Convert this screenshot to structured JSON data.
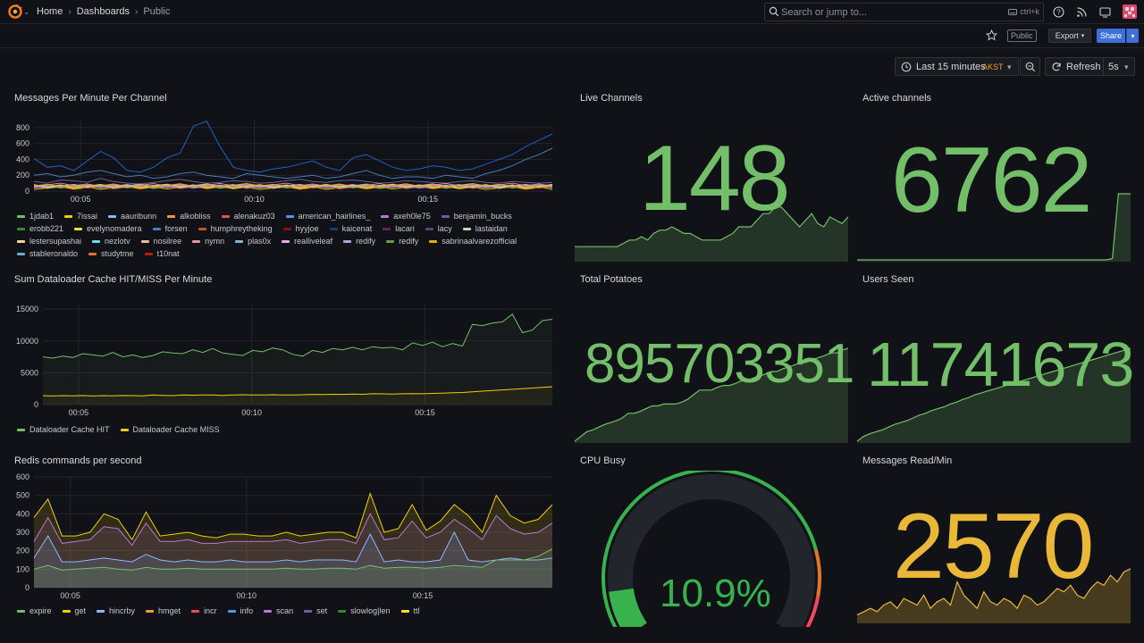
{
  "breadcrumb": {
    "home": "Home",
    "dashboards": "Dashboards",
    "current": "Public"
  },
  "search": {
    "placeholder": "Search or jump to...",
    "shortcut": "ctrl+k"
  },
  "toolbar": {
    "public_tag": "Public",
    "export_label": "Export",
    "share_label": "Share"
  },
  "timepicker": {
    "range": "Last 15 minutes",
    "timezone": "AKST"
  },
  "refresh": {
    "label": "Refresh",
    "interval": "5s"
  },
  "colors": {
    "green": "#73bf69",
    "yellow": "#f2cc0c",
    "blue": "#5794f2",
    "orange": "#ff9830",
    "red": "#f2495c",
    "purple": "#b877d9",
    "dark_blue": "#1f60c4"
  },
  "panels": {
    "messages_per_minute": {
      "title": "Messages Per Minute Per Channel",
      "legend": [
        {
          "name": "1jdab1",
          "color": "#73bf69"
        },
        {
          "name": "7issai",
          "color": "#f2cc0c"
        },
        {
          "name": "aauribunn",
          "color": "#8ab8ff"
        },
        {
          "name": "alkobliss",
          "color": "#ff9830"
        },
        {
          "name": "alenakuz03",
          "color": "#f2495c"
        },
        {
          "name": "american_hairlines_",
          "color": "#5794f2"
        },
        {
          "name": "axeh0le75",
          "color": "#b877d9"
        },
        {
          "name": "benjamin_bucks",
          "color": "#705da0"
        },
        {
          "name": "erobb221",
          "color": "#37872d"
        },
        {
          "name": "evelynomadera",
          "color": "#fade2a"
        },
        {
          "name": "forsen",
          "color": "#447ebc"
        },
        {
          "name": "humphreytheking",
          "color": "#c15c17"
        },
        {
          "name": "hyyjoe",
          "color": "#890f02"
        },
        {
          "name": "kaicenat",
          "color": "#0a437c"
        },
        {
          "name": "lacari",
          "color": "#6d1f62"
        },
        {
          "name": "lacy",
          "color": "#584477"
        },
        {
          "name": "lastaidan",
          "color": "#b7dbab"
        },
        {
          "name": "lestersupashai",
          "color": "#f4d598"
        },
        {
          "name": "nezlotv",
          "color": "#70dbed"
        },
        {
          "name": "nosilree",
          "color": "#f9ba8f"
        },
        {
          "name": "nymn",
          "color": "#f29191"
        },
        {
          "name": "plas0x",
          "color": "#82b5d8"
        },
        {
          "name": "realliveleaf",
          "color": "#e5a8e2"
        },
        {
          "name": "redify",
          "color": "#aea2e0"
        },
        {
          "name": "redify",
          "color": "#629e51"
        },
        {
          "name": "sabrinaalvarezofficial",
          "color": "#e5ac0e"
        },
        {
          "name": "stableronaldo",
          "color": "#64b0c8"
        },
        {
          "name": "studytme",
          "color": "#e0752d"
        },
        {
          "name": "t10nat",
          "color": "#bf1b00"
        }
      ]
    },
    "live_channels": {
      "title": "Live Channels",
      "value": "148"
    },
    "active_channels": {
      "title": "Active channels",
      "value": "6762"
    },
    "cache_hit_miss": {
      "title": "Sum Dataloader Cache HIT/MISS Per Minute",
      "legend": [
        {
          "name": "Dataloader Cache HIT",
          "color": "#73bf69"
        },
        {
          "name": "Dataloader Cache MISS",
          "color": "#f2cc0c"
        }
      ]
    },
    "total_potatoes": {
      "title": "Total Potatoes",
      "value": "895703351"
    },
    "users_seen": {
      "title": "Users Seen",
      "value": "11741673"
    },
    "redis_commands": {
      "title": "Redis commands per second",
      "legend": [
        {
          "name": "expire",
          "color": "#73bf69"
        },
        {
          "name": "get",
          "color": "#f2cc0c"
        },
        {
          "name": "hincrby",
          "color": "#8ab8ff"
        },
        {
          "name": "hmget",
          "color": "#ff9830"
        },
        {
          "name": "incr",
          "color": "#f2495c"
        },
        {
          "name": "info",
          "color": "#5794f2"
        },
        {
          "name": "scan",
          "color": "#b877d9"
        },
        {
          "name": "set",
          "color": "#705da0"
        },
        {
          "name": "slowlog|len",
          "color": "#37872d"
        },
        {
          "name": "ttl",
          "color": "#fade2a"
        }
      ]
    },
    "cpu_busy": {
      "title": "CPU Busy",
      "value": "10.9%",
      "percent": 10.9
    },
    "messages_read": {
      "title": "Messages Read/Min",
      "value": "2570"
    }
  },
  "chart_data": [
    {
      "type": "line",
      "title": "Messages Per Minute Per Channel",
      "x_ticks": [
        "00:05",
        "00:10",
        "00:15"
      ],
      "y_ticks": [
        0,
        200,
        400,
        600,
        800
      ],
      "ylim": [
        0,
        900
      ],
      "series": [
        {
          "name": "forsen",
          "values": [
            410,
            300,
            320,
            260,
            380,
            500,
            420,
            260,
            240,
            300,
            420,
            480,
            820,
            880,
            560,
            300,
            260,
            240,
            280,
            300,
            340,
            380,
            300,
            260,
            420,
            460,
            380,
            300,
            260,
            280,
            320,
            300,
            260,
            280,
            340,
            400,
            460,
            560,
            640,
            720
          ]
        },
        {
          "name": "kaicenat",
          "values": [
            200,
            220,
            180,
            200,
            240,
            260,
            220,
            180,
            200,
            160,
            180,
            220,
            240,
            200,
            180,
            160,
            220,
            200,
            180,
            160,
            180,
            200,
            160,
            180,
            220,
            260,
            200,
            160,
            180,
            180,
            160,
            200,
            180,
            160,
            220,
            260,
            320,
            400,
            460,
            540
          ]
        },
        {
          "name": "lacy",
          "values": [
            120,
            100,
            140,
            130,
            110,
            160,
            120,
            100,
            90,
            110,
            130,
            150,
            120,
            100,
            110,
            130,
            120,
            100,
            110,
            130,
            150,
            120,
            110,
            130,
            140,
            120,
            100,
            110,
            130,
            120,
            110,
            100,
            120,
            130,
            110,
            100,
            120,
            110,
            100,
            110
          ]
        }
      ]
    },
    {
      "type": "area",
      "title": "Live Channels",
      "values": [
        20,
        20,
        20,
        20,
        20,
        20,
        20,
        20,
        25,
        30,
        30,
        35,
        30,
        40,
        45,
        45,
        50,
        45,
        40,
        40,
        35,
        30,
        30,
        30,
        30,
        35,
        40,
        50,
        50,
        50,
        60,
        70,
        70,
        80,
        80,
        70,
        60,
        50,
        60,
        70,
        55,
        50,
        65,
        60,
        55,
        65
      ]
    },
    {
      "type": "area",
      "title": "Active channels",
      "values": [
        0,
        0,
        0,
        0,
        0,
        0,
        0,
        0,
        0,
        0,
        0,
        0,
        0,
        0,
        0,
        0,
        0,
        0,
        0,
        0,
        0,
        0,
        0,
        0,
        0,
        0,
        0,
        0,
        0,
        0,
        0,
        0,
        0,
        0,
        0,
        0,
        0,
        0,
        0,
        0,
        0,
        0,
        2,
        100,
        100,
        100
      ]
    },
    {
      "type": "line",
      "title": "Sum Dataloader Cache HIT/MISS Per Minute",
      "x_ticks": [
        "00:05",
        "00:10",
        "00:15"
      ],
      "y_ticks": [
        0,
        5000,
        10000,
        15000
      ],
      "ylim": [
        0,
        16000
      ],
      "series": [
        {
          "name": "Dataloader Cache HIT",
          "values": [
            7500,
            7300,
            7600,
            7400,
            8000,
            7800,
            7600,
            8200,
            7500,
            7800,
            7400,
            7700,
            8300,
            8100,
            8000,
            8600,
            8200,
            8800,
            8100,
            7900,
            7700,
            8500,
            8300,
            8900,
            8600,
            7900,
            7600,
            8500,
            8200,
            8800,
            8600,
            9000,
            8600,
            9100,
            8900,
            9000,
            8600,
            9700,
            9300,
            9800,
            9100,
            9600,
            9200,
            12600,
            12400,
            12800,
            13000,
            14200,
            11300,
            11700,
            13200,
            13400
          ]
        },
        {
          "name": "Dataloader Cache MISS",
          "values": [
            1400,
            1350,
            1400,
            1380,
            1420,
            1350,
            1400,
            1380,
            1420,
            1400,
            1380,
            1500,
            1450,
            1400,
            1500,
            1480,
            1520,
            1500,
            1450,
            1500,
            1550,
            1500,
            1520,
            1550,
            1500,
            1520,
            1550,
            1600,
            1580,
            1620,
            1600,
            1650,
            1620,
            1700,
            1680,
            1650,
            1700,
            1720,
            1700,
            1750,
            1800,
            1850,
            1900,
            2000,
            2100,
            2200,
            2300,
            2400,
            2500,
            2600,
            2700,
            2800
          ]
        }
      ]
    },
    {
      "type": "area",
      "title": "Total Potatoes",
      "values": [
        0,
        5,
        10,
        12,
        15,
        18,
        20,
        22,
        25,
        30,
        30,
        32,
        35,
        38,
        38,
        40,
        40,
        40,
        42,
        45,
        50,
        55,
        55,
        55,
        58,
        60,
        60,
        62,
        65,
        65,
        68,
        70,
        72,
        75,
        75,
        78,
        80,
        82,
        85,
        85,
        88,
        90,
        92,
        95,
        95,
        98,
        100
      ]
    },
    {
      "type": "area",
      "title": "Users Seen",
      "values": [
        0,
        5,
        8,
        10,
        12,
        15,
        18,
        20,
        22,
        25,
        28,
        30,
        33,
        35,
        37,
        40,
        42,
        45,
        47,
        50,
        52,
        54,
        56,
        58,
        60,
        62,
        64,
        66,
        68,
        70,
        72,
        74,
        76,
        78,
        80,
        82,
        84,
        86,
        88,
        90,
        92,
        94,
        96,
        98,
        100
      ]
    },
    {
      "type": "area",
      "title": "Redis commands per second",
      "x_ticks": [
        "00:05",
        "00:10",
        "00:15"
      ],
      "y_ticks": [
        0,
        100,
        200,
        300,
        400,
        500,
        600
      ],
      "ylim": [
        0,
        600
      ],
      "series": [
        {
          "name": "get",
          "values": [
            380,
            480,
            280,
            280,
            300,
            400,
            370,
            260,
            410,
            280,
            290,
            300,
            280,
            270,
            290,
            290,
            280,
            280,
            300,
            280,
            290,
            300,
            300,
            270,
            510,
            300,
            320,
            450,
            310,
            360,
            450,
            390,
            300,
            500,
            390,
            350,
            370,
            450
          ]
        },
        {
          "name": "scan",
          "values": [
            250,
            380,
            240,
            250,
            260,
            330,
            320,
            230,
            350,
            250,
            250,
            260,
            240,
            240,
            250,
            250,
            250,
            250,
            260,
            240,
            250,
            260,
            260,
            240,
            400,
            260,
            270,
            360,
            270,
            300,
            370,
            320,
            260,
            390,
            320,
            290,
            300,
            350
          ]
        },
        {
          "name": "hincrby",
          "values": [
            160,
            280,
            140,
            140,
            150,
            160,
            150,
            140,
            180,
            150,
            140,
            150,
            140,
            140,
            150,
            140,
            140,
            140,
            150,
            140,
            150,
            150,
            150,
            140,
            290,
            140,
            150,
            140,
            140,
            150,
            300,
            150,
            140,
            150,
            160,
            150,
            150,
            160
          ]
        },
        {
          "name": "expire",
          "values": [
            100,
            120,
            95,
            100,
            105,
            110,
            100,
            95,
            110,
            100,
            100,
            105,
            100,
            100,
            100,
            100,
            100,
            100,
            105,
            100,
            100,
            105,
            105,
            100,
            120,
            105,
            110,
            110,
            105,
            110,
            120,
            115,
            110,
            150,
            150,
            150,
            170,
            210
          ]
        }
      ]
    },
    {
      "type": "area",
      "title": "Messages Read/Min",
      "values": [
        10,
        15,
        20,
        15,
        25,
        30,
        20,
        35,
        30,
        25,
        40,
        20,
        30,
        35,
        25,
        60,
        40,
        30,
        20,
        45,
        30,
        25,
        35,
        30,
        20,
        40,
        35,
        25,
        30,
        40,
        50,
        45,
        55,
        40,
        35,
        50,
        60,
        55,
        70,
        60,
        75,
        80
      ]
    }
  ]
}
